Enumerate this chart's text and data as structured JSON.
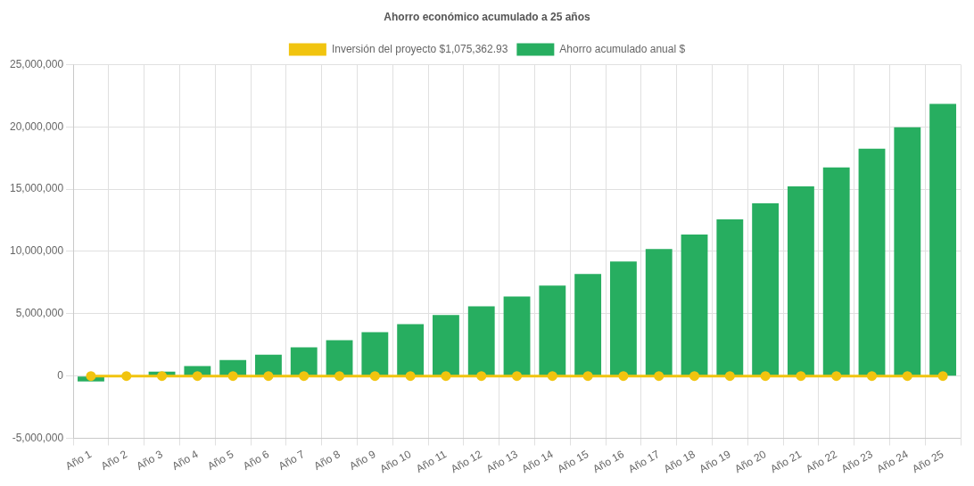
{
  "chart_data": {
    "type": "bar",
    "title": "Ahorro económico acumulado a 25 años",
    "categories": [
      "Año 1",
      "Año 2",
      "Año 3",
      "Año 4",
      "Año 5",
      "Año 6",
      "Año 7",
      "Año 8",
      "Año 9",
      "Año 10",
      "Año 11",
      "Año 12",
      "Año 13",
      "Año 14",
      "Año 15",
      "Año 16",
      "Año 17",
      "Año 18",
      "Año 19",
      "Año 20",
      "Año 21",
      "Año 22",
      "Año 23",
      "Año 24",
      "Año 25"
    ],
    "series": [
      {
        "name": "Inversión del proyecto $1,075,362.93",
        "type": "line",
        "color": "#f1c40f",
        "values": [
          0,
          0,
          0,
          0,
          0,
          0,
          0,
          0,
          0,
          0,
          0,
          0,
          0,
          0,
          0,
          0,
          0,
          0,
          0,
          0,
          0,
          0,
          0,
          0,
          0
        ]
      },
      {
        "name": "Ahorro acumulado anual $",
        "color": "#27ae60",
        "values": [
          -430000,
          null,
          360000,
          790000,
          1290000,
          1720000,
          2300000,
          2870000,
          3520000,
          4170000,
          4890000,
          5600000,
          6390000,
          7260000,
          8190000,
          9200000,
          10200000,
          11350000,
          12570000,
          13860000,
          15230000,
          16740000,
          18250000,
          19970000,
          21840000
        ]
      }
    ],
    "ylim": [
      -5000000,
      25000000
    ],
    "yticks": [
      {
        "value": -5000000,
        "label": "-5,000,000"
      },
      0,
      {
        "value": 5000000,
        "label": "5,000,000"
      },
      {
        "value": 10000000,
        "label": "10,000,000"
      },
      {
        "value": 15000000,
        "label": "15,000,000"
      },
      {
        "value": 20000000,
        "label": "20,000,000"
      },
      {
        "value": 25000000,
        "label": "25,000,000"
      }
    ],
    "grid": true,
    "legend": "top",
    "marker": "circle"
  }
}
